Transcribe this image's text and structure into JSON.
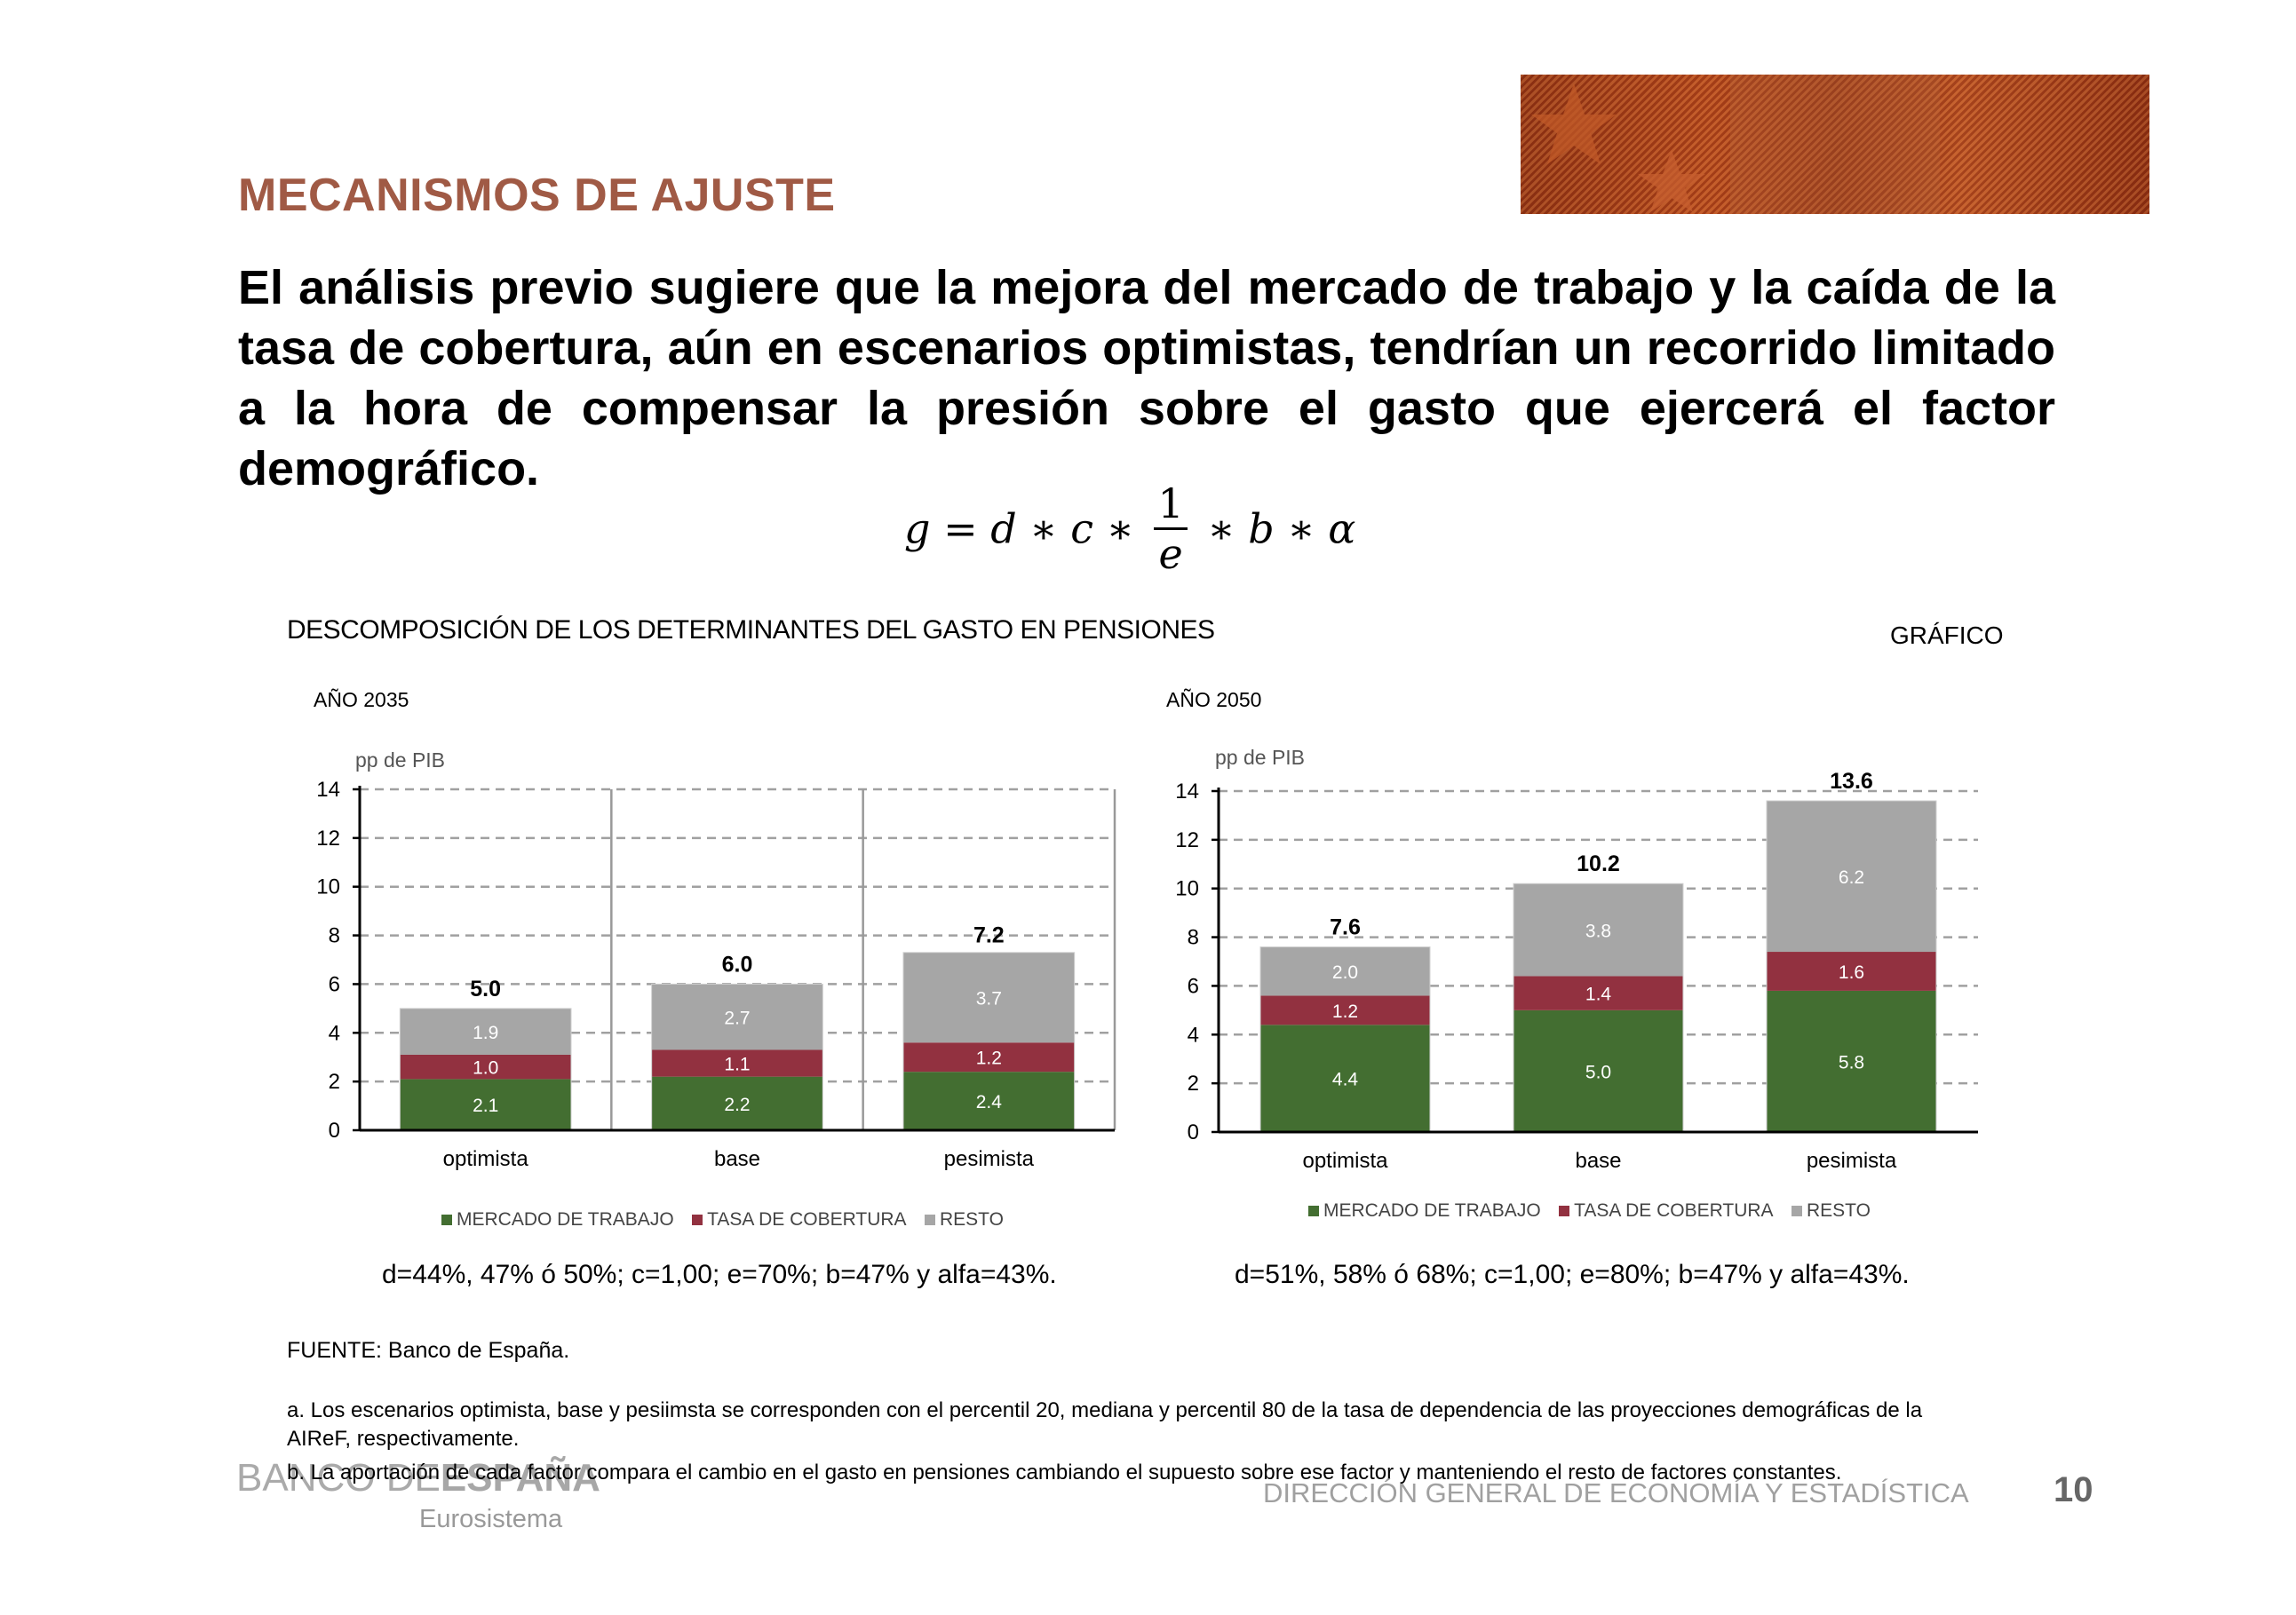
{
  "header": {
    "title": "MECANISMOS DE AJUSTE"
  },
  "body_text": "El análisis previo sugiere que la mejora del mercado de trabajo y la caída de la tasa de cobertura, aún en escenarios optimistas, tendrían un recorrido limitado a la hora de compensar la presión sobre el gasto que ejercerá el factor demográfico.",
  "formula": {
    "lhs": "g = d ∗ c ∗",
    "numerator": "1",
    "denominator": "e",
    "rhs": "∗ b ∗ α"
  },
  "figure": {
    "title": "DESCOMPOSICIÓN  DE LOS DETERMINANTES  DEL GASTO EN PENSIONES",
    "tag": "GRÁFICO"
  },
  "legend": [
    "MERCADO DE TRABAJO",
    "TASA DE COBERTURA",
    "RESTO"
  ],
  "colors": {
    "mercado": "#436e31",
    "tasa": "#923140",
    "resto": "#a6a6a6",
    "title": "#a05a45"
  },
  "chart_data": [
    {
      "type": "bar",
      "stacked": true,
      "panel_title": "AÑO 2035",
      "ylabel": "pp de PIB",
      "ylim": [
        0,
        14
      ],
      "yticks": [
        "0",
        "2",
        "4",
        "6",
        "8",
        "10",
        "12",
        "14"
      ],
      "categories": [
        "optimista",
        "base",
        "pesimista"
      ],
      "series": [
        {
          "name": "MERCADO DE TRABAJO",
          "values": [
            2.1,
            2.2,
            2.4
          ],
          "labels": [
            "2.1",
            "2.2",
            "2.4"
          ]
        },
        {
          "name": "TASA DE COBERTURA",
          "values": [
            1.0,
            1.1,
            1.2
          ],
          "labels": [
            "1.0",
            "1.1",
            "1.2"
          ]
        },
        {
          "name": "RESTO",
          "values": [
            1.9,
            2.7,
            3.7
          ],
          "labels": [
            "1.9",
            "2.7",
            "3.7"
          ]
        }
      ],
      "totals": [
        "5.0",
        "6.0",
        "7.2"
      ],
      "total_values": [
        5.0,
        6.0,
        7.2
      ],
      "grid": "dashed horizontal",
      "category_separators": true,
      "params": "d=44%, 47% ó 50%; c=1,00; e=70%; b=47% y alfa=43%."
    },
    {
      "type": "bar",
      "stacked": true,
      "panel_title": "AÑO 2050",
      "ylabel": "pp de PIB",
      "ylim": [
        0,
        14
      ],
      "yticks": [
        "0",
        "2",
        "4",
        "6",
        "8",
        "10",
        "12",
        "14"
      ],
      "categories": [
        "optimista",
        "base",
        "pesimista"
      ],
      "series": [
        {
          "name": "MERCADO DE TRABAJO",
          "values": [
            4.4,
            5.0,
            5.8
          ],
          "labels": [
            "4.4",
            "5.0",
            "5.8"
          ]
        },
        {
          "name": "TASA DE COBERTURA",
          "values": [
            1.2,
            1.4,
            1.6
          ],
          "labels": [
            "1.2",
            "1.4",
            "1.6"
          ]
        },
        {
          "name": "RESTO",
          "values": [
            2.0,
            3.8,
            6.2
          ],
          "labels": [
            "2.0",
            "3.8",
            "6.2"
          ]
        }
      ],
      "totals": [
        "7.6",
        "10.2",
        "13.6"
      ],
      "total_values": [
        7.6,
        10.2,
        13.6
      ],
      "grid": "dashed horizontal",
      "category_separators": false,
      "params": "d=51%, 58% ó 68%; c=1,00; e=80%; b=47% y alfa=43%."
    }
  ],
  "footer": {
    "fuente": "FUENTE:  Banco de España.",
    "note_a": "a. Los escenarios optimista, base y pesiimsta se corresponden con el percentil 20, mediana y percentil 80 de la tasa de dependencia de las proyecciones demográficas de la AIReF, respectivamente.",
    "note_b": "b. La aportación de cada factor compara el cambio en el gasto en pensiones cambiando el supuesto sobre  ese factor  y manteniendo el resto de factores constantes.",
    "logo_left": "BANCO DE",
    "logo_right": "ESPAÑA",
    "eurosistema": "Eurosistema",
    "direccion": "DIRECCIÓN GENERAL DE ECONOMÍA Y ESTADÍSTICA",
    "page_number": "10"
  }
}
